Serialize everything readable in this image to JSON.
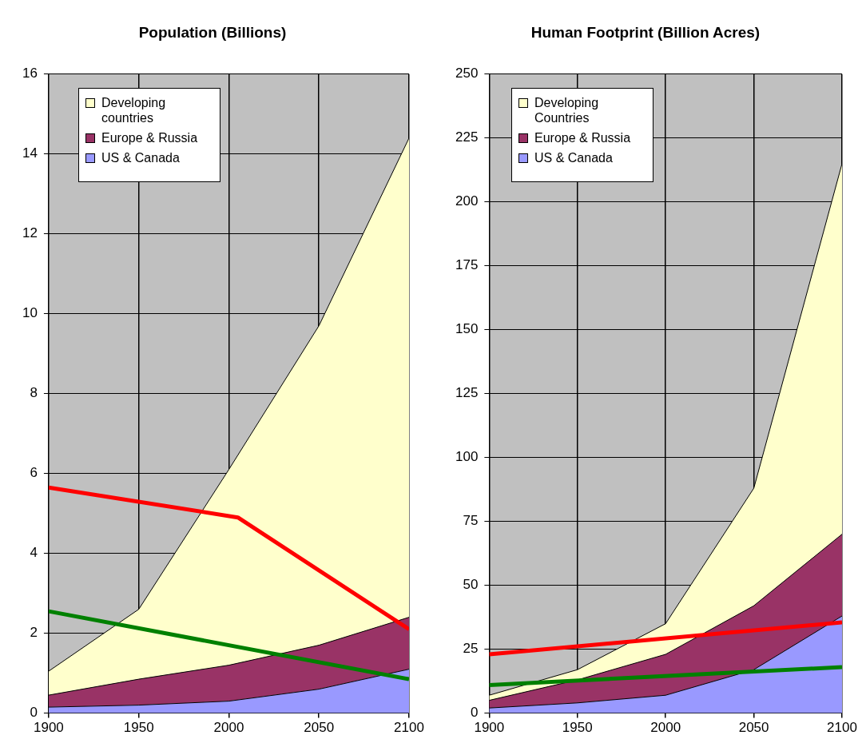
{
  "chart_data": [
    {
      "type": "area",
      "title": "Population (Billions)",
      "x": [
        1900,
        1950,
        2000,
        2050,
        2100
      ],
      "stacked": true,
      "xlim": [
        1900,
        2100
      ],
      "xticks": [
        1900,
        1950,
        2000,
        2050,
        2100
      ],
      "ylim": [
        0,
        16
      ],
      "yticks": [
        0,
        2,
        4,
        6,
        8,
        10,
        12,
        14,
        16
      ],
      "grid": true,
      "legend": "top left",
      "marker": "none",
      "series": [
        {
          "name": "US & Canada",
          "color": "#9999ff",
          "values": [
            0.15,
            0.2,
            0.3,
            0.6,
            1.1
          ]
        },
        {
          "name": "Europe & Russia",
          "color": "#993366",
          "values": [
            0.3,
            0.65,
            0.9,
            1.1,
            1.3
          ]
        },
        {
          "name": "Developing countries",
          "color": "#ffffcc",
          "values": [
            0.6,
            1.75,
            4.9,
            8.0,
            12.0
          ]
        },
        {
          "type": "line",
          "color": "#ff0000",
          "x": [
            1900,
            2005,
            2100
          ],
          "values": [
            5.65,
            4.9,
            2.1
          ]
        },
        {
          "type": "line",
          "color": "#008000",
          "x": [
            1900,
            2100
          ],
          "values": [
            2.55,
            0.85
          ]
        }
      ]
    },
    {
      "type": "area",
      "title": "Human Footprint (Billion Acres)",
      "x": [
        1900,
        1950,
        2000,
        2050,
        2100
      ],
      "stacked": true,
      "xlim": [
        1900,
        2100
      ],
      "xticks": [
        1900,
        1950,
        2000,
        2050,
        2100
      ],
      "ylim": [
        0,
        250
      ],
      "yticks": [
        0,
        25,
        50,
        75,
        100,
        125,
        150,
        175,
        200,
        225,
        250
      ],
      "grid": true,
      "legend": "top left",
      "marker": "none",
      "series": [
        {
          "name": "US & Canada",
          "color": "#9999ff",
          "values": [
            2,
            4,
            7,
            17,
            38
          ]
        },
        {
          "name": "Europe & Russia",
          "color": "#993366",
          "values": [
            3,
            9,
            16,
            25,
            32
          ]
        },
        {
          "name": "Developing Countries",
          "color": "#ffffcc",
          "values": [
            2,
            4,
            12,
            46,
            145
          ]
        },
        {
          "type": "line",
          "color": "#ff0000",
          "x": [
            1900,
            2100
          ],
          "values": [
            23,
            35.5
          ]
        },
        {
          "type": "line",
          "color": "#008000",
          "x": [
            1900,
            2100
          ],
          "values": [
            11,
            18
          ]
        }
      ]
    }
  ]
}
